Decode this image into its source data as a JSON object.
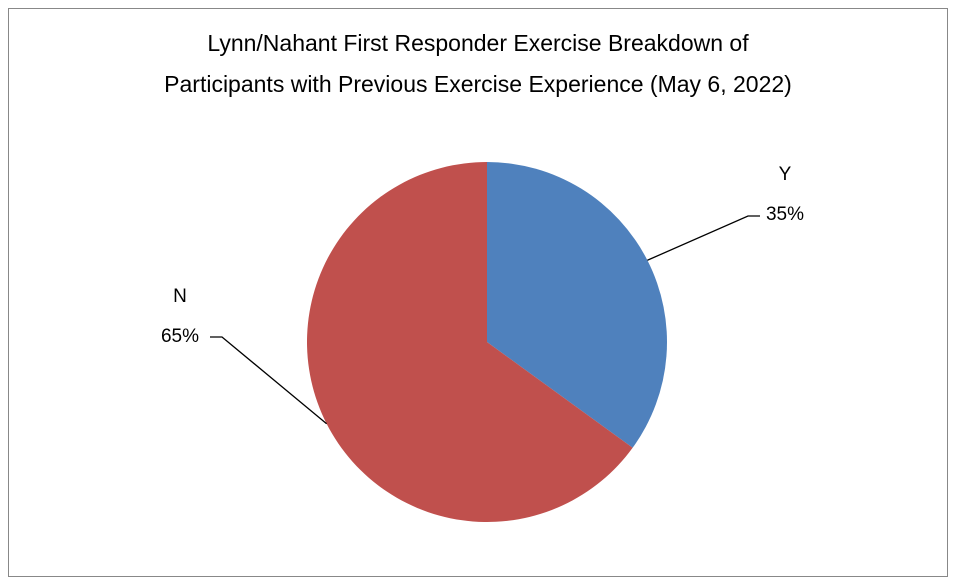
{
  "chart_data": {
    "type": "pie",
    "title": [
      "Lynn/Nahant First Responder Exercise Breakdown of",
      "Participants with Previous Exercise Experience (May 6, 2022)"
    ],
    "categories": [
      "Y",
      "N"
    ],
    "values": [
      35,
      65
    ],
    "value_labels": [
      "35%",
      "65%"
    ],
    "colors": [
      "#4f81bd",
      "#c0504d"
    ]
  }
}
